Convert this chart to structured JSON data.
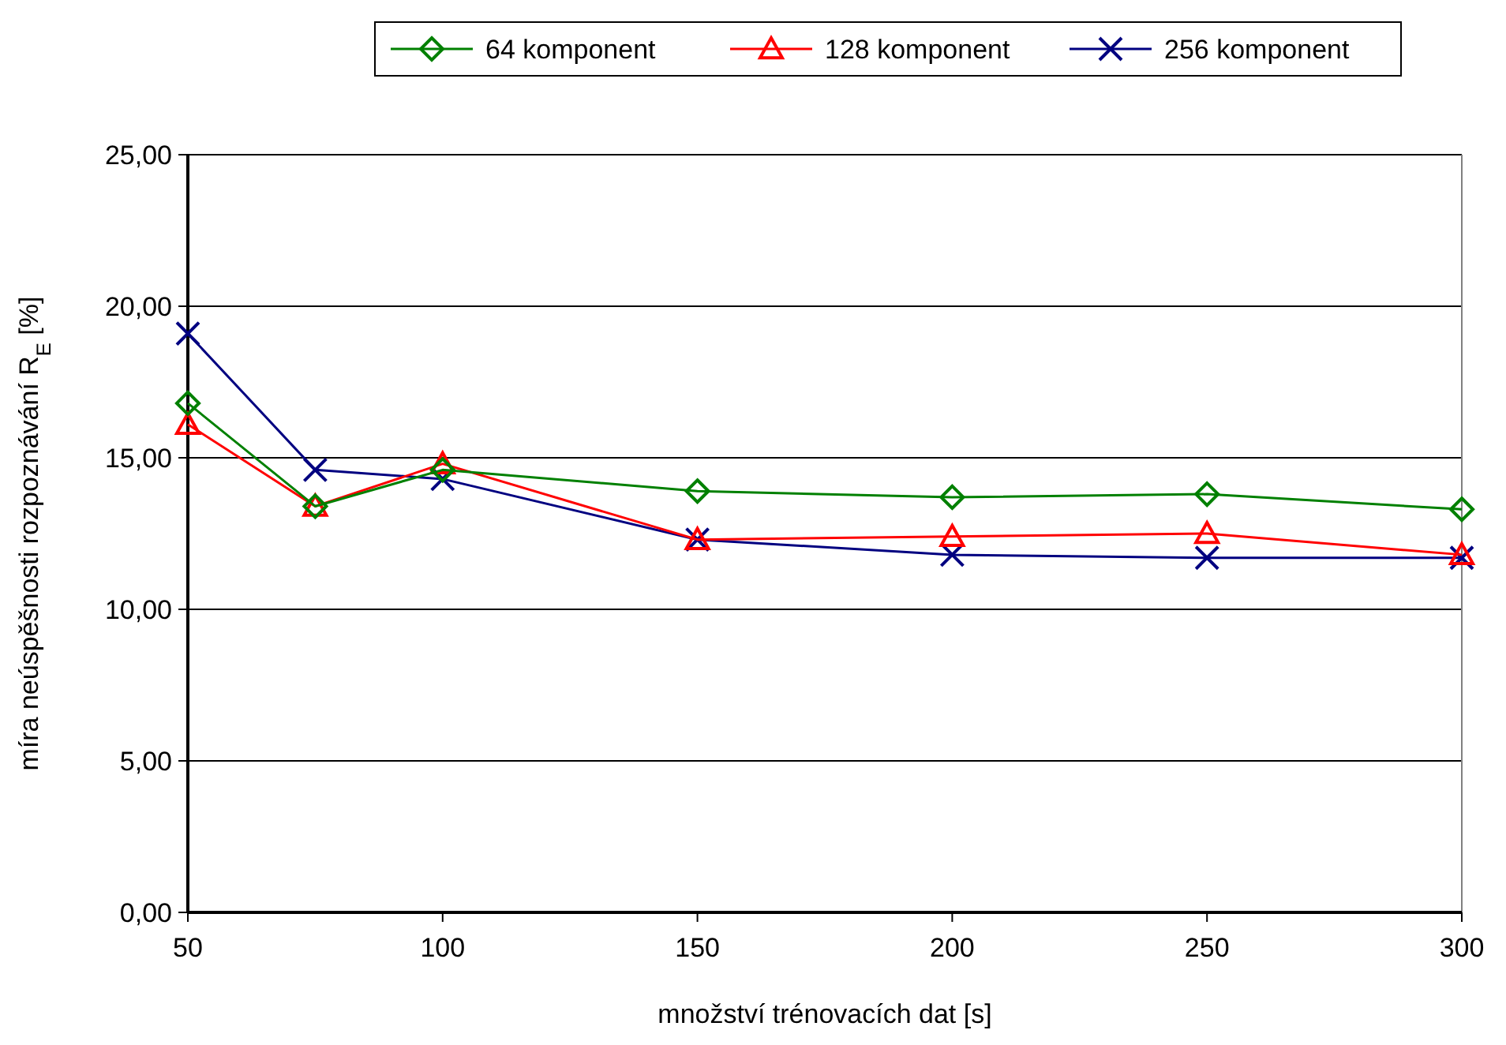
{
  "chart_data": {
    "type": "line",
    "xlabel": "množství trénovacích dat [s]",
    "ylabel": "míra neúspěšnosti rozpoznávání R$_{E}$ [%]",
    "x": [
      50,
      75,
      100,
      150,
      200,
      250,
      300
    ],
    "series": [
      {
        "name": "64 komponent",
        "color": "#008000",
        "marker": "diamond",
        "values": [
          16.8,
          13.4,
          14.6,
          13.9,
          13.7,
          13.8,
          13.3
        ]
      },
      {
        "name": "128 komponent",
        "color": "#ff0000",
        "marker": "triangle",
        "values": [
          16.1,
          13.4,
          14.8,
          12.3,
          12.4,
          12.5,
          11.8
        ]
      },
      {
        "name": "256 komponent",
        "color": "#000080",
        "marker": "cross",
        "values": [
          19.1,
          14.6,
          14.3,
          12.3,
          11.8,
          11.7,
          11.7
        ]
      }
    ],
    "xlim": [
      50,
      300
    ],
    "xticks": [
      50,
      100,
      150,
      200,
      250,
      300
    ],
    "ylim": [
      0,
      25
    ],
    "yticks": [
      {
        "value": 0,
        "label": "0,00"
      },
      {
        "value": 5,
        "label": "5,00"
      },
      {
        "value": 10,
        "label": "10,00"
      },
      {
        "value": 15,
        "label": "15,00"
      },
      {
        "value": 20,
        "label": "20,00"
      },
      {
        "value": 25,
        "label": "25,00"
      }
    ],
    "grid": "y",
    "legend": "top"
  }
}
